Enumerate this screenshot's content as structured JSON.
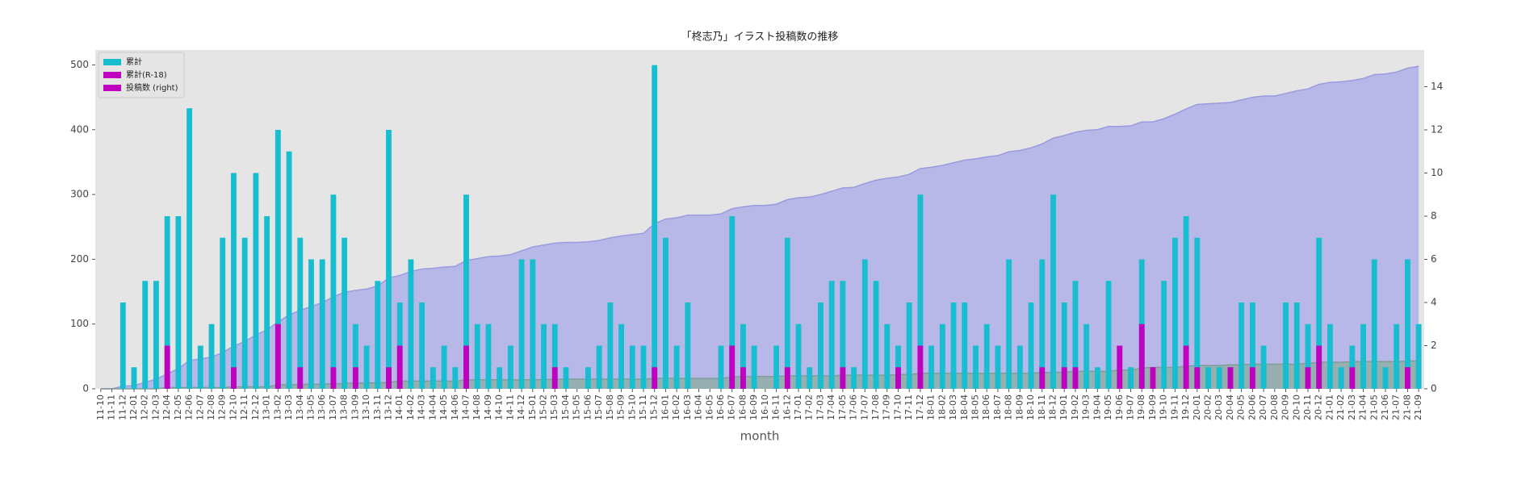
{
  "chart_data": {
    "type": "bar-area",
    "title": "「柊志乃」イラスト投稿数の推移",
    "xlabel": "month",
    "categories": [
      "11-10",
      "11-11",
      "11-12",
      "12-01",
      "12-02",
      "12-03",
      "12-04",
      "12-05",
      "12-06",
      "12-07",
      "12-08",
      "12-09",
      "12-10",
      "12-11",
      "12-12",
      "13-01",
      "13-02",
      "13-03",
      "13-04",
      "13-05",
      "13-06",
      "13-07",
      "13-08",
      "13-09",
      "13-10",
      "13-11",
      "13-12",
      "14-01",
      "14-02",
      "14-03",
      "14-04",
      "14-05",
      "14-06",
      "14-07",
      "14-08",
      "14-09",
      "14-10",
      "14-11",
      "14-12",
      "15-01",
      "15-02",
      "15-03",
      "15-04",
      "15-05",
      "15-06",
      "15-07",
      "15-08",
      "15-09",
      "15-10",
      "15-11",
      "15-12",
      "16-01",
      "16-02",
      "16-03",
      "16-04",
      "16-05",
      "16-06",
      "16-07",
      "16-08",
      "16-09",
      "16-10",
      "16-11",
      "16-12",
      "17-01",
      "17-02",
      "17-03",
      "17-04",
      "17-05",
      "17-06",
      "17-07",
      "17-08",
      "17-09",
      "17-10",
      "17-11",
      "17-12",
      "18-01",
      "18-02",
      "18-03",
      "18-04",
      "18-05",
      "18-06",
      "18-07",
      "18-08",
      "18-09",
      "18-10",
      "18-11",
      "18-12",
      "19-01",
      "19-02",
      "19-03",
      "19-04",
      "19-05",
      "19-06",
      "19-07",
      "19-08",
      "19-09",
      "19-10",
      "19-11",
      "19-12",
      "20-01",
      "20-02",
      "20-03",
      "20-04",
      "20-05",
      "20-06",
      "20-07",
      "20-08",
      "20-09",
      "20-10",
      "20-11",
      "20-12",
      "21-01",
      "21-02",
      "21-03",
      "21-04",
      "21-05",
      "21-06",
      "21-07",
      "21-08",
      "21-09"
    ],
    "ylim": [
      0,
      523
    ],
    "yticks": [
      0,
      100,
      200,
      300,
      400,
      500
    ],
    "y2lim": [
      0,
      15.7
    ],
    "y2ticks": [
      0,
      2,
      4,
      6,
      8,
      10,
      12,
      14
    ],
    "legend": "upper left",
    "series": [
      {
        "name": "累計",
        "kind": "area",
        "color": "#b3b3e8",
        "edge": "#9a9ae0",
        "legend_color": "#17becf",
        "values": [
          0,
          0,
          4,
          5,
          10,
          15,
          23,
          31,
          44,
          46,
          49,
          56,
          66,
          73,
          83,
          91,
          103,
          114,
          121,
          127,
          133,
          142,
          149,
          152,
          154,
          159,
          171,
          175,
          181,
          185,
          186,
          188,
          189,
          198,
          201,
          204,
          205,
          207,
          213,
          219,
          222,
          225,
          226,
          226,
          227,
          229,
          233,
          236,
          238,
          240,
          255,
          262,
          264,
          268,
          268,
          268,
          270,
          278,
          281,
          283,
          283,
          285,
          292,
          295,
          296,
          300,
          305,
          310,
          311,
          317,
          322,
          325,
          327,
          331,
          340,
          342,
          345,
          349,
          353,
          355,
          358,
          360,
          366,
          368,
          372,
          378,
          387,
          391,
          396,
          399,
          400,
          405,
          405,
          406,
          412,
          412,
          417,
          424,
          432,
          439,
          440,
          441,
          442,
          446,
          450,
          452,
          452,
          456,
          460,
          463,
          470,
          473,
          474,
          476,
          479,
          485,
          486,
          489,
          495,
          498
        ]
      },
      {
        "name": "累計(R-18)",
        "kind": "area",
        "color": "#93aeab",
        "edge": "#7f9c99",
        "legend_color": "#bf00bf",
        "values": [
          0,
          0,
          0,
          0,
          0,
          0,
          2,
          2,
          2,
          2,
          2,
          2,
          3,
          3,
          3,
          3,
          6,
          6,
          7,
          7,
          7,
          8,
          8,
          9,
          9,
          9,
          10,
          12,
          12,
          12,
          12,
          12,
          12,
          14,
          14,
          14,
          14,
          14,
          14,
          14,
          14,
          15,
          15,
          15,
          15,
          15,
          15,
          15,
          15,
          15,
          16,
          16,
          16,
          16,
          16,
          16,
          16,
          18,
          19,
          19,
          19,
          19,
          20,
          20,
          20,
          20,
          20,
          21,
          21,
          21,
          21,
          21,
          22,
          22,
          24,
          24,
          24,
          24,
          24,
          24,
          24,
          24,
          24,
          24,
          24,
          25,
          25,
          26,
          27,
          27,
          27,
          27,
          29,
          29,
          32,
          33,
          33,
          33,
          35,
          36,
          36,
          36,
          37,
          37,
          38,
          38,
          38,
          38,
          38,
          39,
          41,
          41,
          41,
          42,
          42,
          42,
          42,
          42,
          43,
          43
        ]
      },
      {
        "name": "投稿数 (right)",
        "kind": "bar",
        "axis": "y2",
        "color": "#17becf",
        "legend_color": "#bf00bf",
        "values": [
          0,
          0,
          4,
          1,
          5,
          5,
          8,
          8,
          13,
          2,
          3,
          7,
          10,
          7,
          10,
          8,
          12,
          11,
          7,
          6,
          6,
          9,
          7,
          3,
          2,
          5,
          12,
          4,
          6,
          4,
          1,
          2,
          1,
          9,
          3,
          3,
          1,
          2,
          6,
          6,
          3,
          3,
          1,
          0,
          1,
          2,
          4,
          3,
          2,
          2,
          15,
          7,
          2,
          4,
          0,
          0,
          2,
          8,
          3,
          2,
          0,
          2,
          7,
          3,
          1,
          4,
          5,
          5,
          1,
          6,
          5,
          3,
          2,
          4,
          9,
          2,
          3,
          4,
          4,
          2,
          3,
          2,
          6,
          2,
          4,
          6,
          9,
          4,
          5,
          3,
          1,
          5,
          0,
          1,
          6,
          0,
          5,
          7,
          8,
          7,
          1,
          1,
          1,
          4,
          4,
          2,
          0,
          4,
          4,
          3,
          7,
          3,
          1,
          2,
          3,
          6,
          1,
          3,
          6,
          3
        ]
      },
      {
        "kind": "bar",
        "axis": "y2",
        "color": "#bf00bf",
        "values": [
          0,
          0,
          0,
          0,
          0,
          0,
          2,
          0,
          0,
          0,
          0,
          0,
          1,
          0,
          0,
          0,
          3,
          0,
          1,
          0,
          0,
          1,
          0,
          1,
          0,
          0,
          1,
          2,
          0,
          0,
          0,
          0,
          0,
          2,
          0,
          0,
          0,
          0,
          0,
          0,
          0,
          1,
          0,
          0,
          0,
          0,
          0,
          0,
          0,
          0,
          1,
          0,
          0,
          0,
          0,
          0,
          0,
          2,
          1,
          0,
          0,
          0,
          1,
          0,
          0,
          0,
          0,
          1,
          0,
          0,
          0,
          0,
          1,
          0,
          2,
          0,
          0,
          0,
          0,
          0,
          0,
          0,
          0,
          0,
          0,
          1,
          0,
          1,
          1,
          0,
          0,
          0,
          2,
          0,
          3,
          1,
          0,
          0,
          2,
          1,
          0,
          0,
          1,
          0,
          1,
          0,
          0,
          0,
          0,
          1,
          2,
          0,
          0,
          1,
          0,
          0,
          0,
          0,
          1,
          0
        ]
      }
    ]
  }
}
